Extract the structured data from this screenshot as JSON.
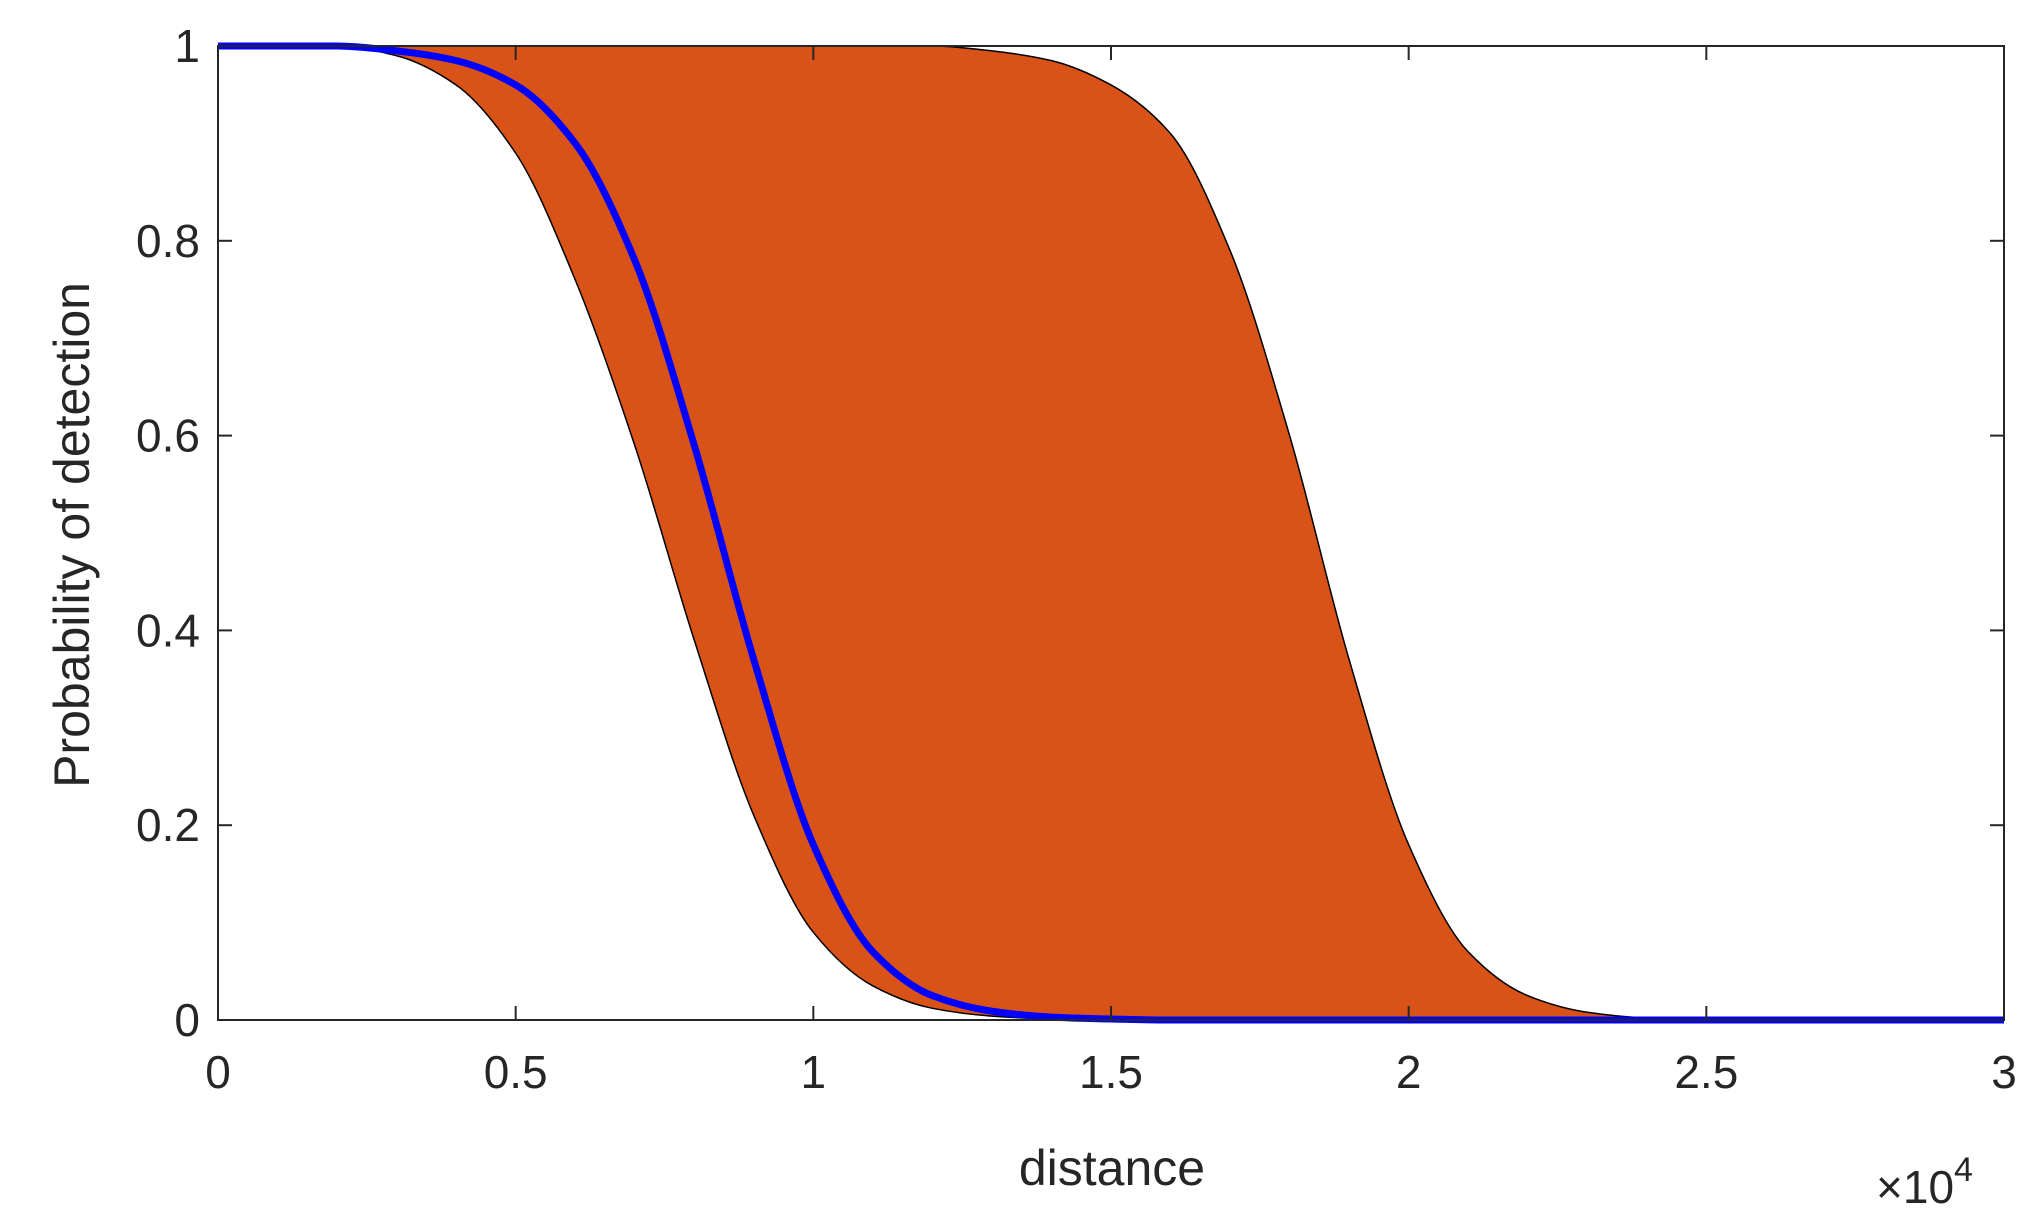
{
  "chart_data": {
    "type": "area",
    "title": "",
    "xlabel": "distance",
    "ylabel": "Probability of detection",
    "x_exponent_label": "×10",
    "x_exponent_power": "4",
    "xlim": [
      0,
      3
    ],
    "ylim": [
      0,
      1
    ],
    "x_ticks": [
      0,
      0.5,
      1,
      1.5,
      2,
      2.5,
      3
    ],
    "x_tick_labels": [
      "0",
      "0.5",
      "1",
      "1.5",
      "2",
      "2.5",
      "3"
    ],
    "y_ticks": [
      0,
      0.2,
      0.4,
      0.6,
      0.8,
      1
    ],
    "y_tick_labels": [
      "0",
      "0.2",
      "0.4",
      "0.6",
      "0.8",
      "1"
    ],
    "grid": false,
    "band_color": "#D95319",
    "line_color": "#0000FF",
    "band": {
      "x": [
        0,
        0.2,
        0.3,
        0.4,
        0.5,
        0.6,
        0.7,
        0.8,
        0.9,
        1.0,
        1.1,
        1.2,
        1.3,
        1.4,
        1.5,
        1.6,
        1.7,
        1.8,
        1.9,
        2.0,
        2.1,
        2.2,
        2.3,
        2.4,
        2.5,
        3.0
      ],
      "lower": [
        1.0,
        1.0,
        0.99,
        0.96,
        0.89,
        0.76,
        0.59,
        0.39,
        0.21,
        0.09,
        0.035,
        0.012,
        0.004,
        0.001,
        0.0,
        0.0,
        0.0,
        0.0,
        0.0,
        0.0,
        0.0,
        0.0,
        0.0,
        0.0,
        0.0,
        0.0
      ],
      "upper": [
        1.0,
        1.0,
        1.0,
        1.0,
        1.0,
        1.0,
        1.0,
        1.0,
        1.0,
        1.0,
        1.0,
        1.0,
        0.995,
        0.985,
        0.96,
        0.91,
        0.79,
        0.6,
        0.37,
        0.18,
        0.07,
        0.025,
        0.008,
        0.002,
        0.0,
        0.0
      ]
    },
    "series": [
      {
        "x": [
          0,
          0.2,
          0.3,
          0.4,
          0.5,
          0.6,
          0.7,
          0.8,
          0.9,
          1.0,
          1.1,
          1.2,
          1.3,
          1.4,
          1.5,
          1.6,
          1.8,
          2.0,
          2.5,
          3.0
        ],
        "values": [
          1.0,
          1.0,
          0.995,
          0.985,
          0.96,
          0.9,
          0.78,
          0.59,
          0.37,
          0.18,
          0.07,
          0.025,
          0.009,
          0.003,
          0.001,
          0.0,
          0.0,
          0.0,
          0.0,
          0.0
        ]
      }
    ]
  }
}
